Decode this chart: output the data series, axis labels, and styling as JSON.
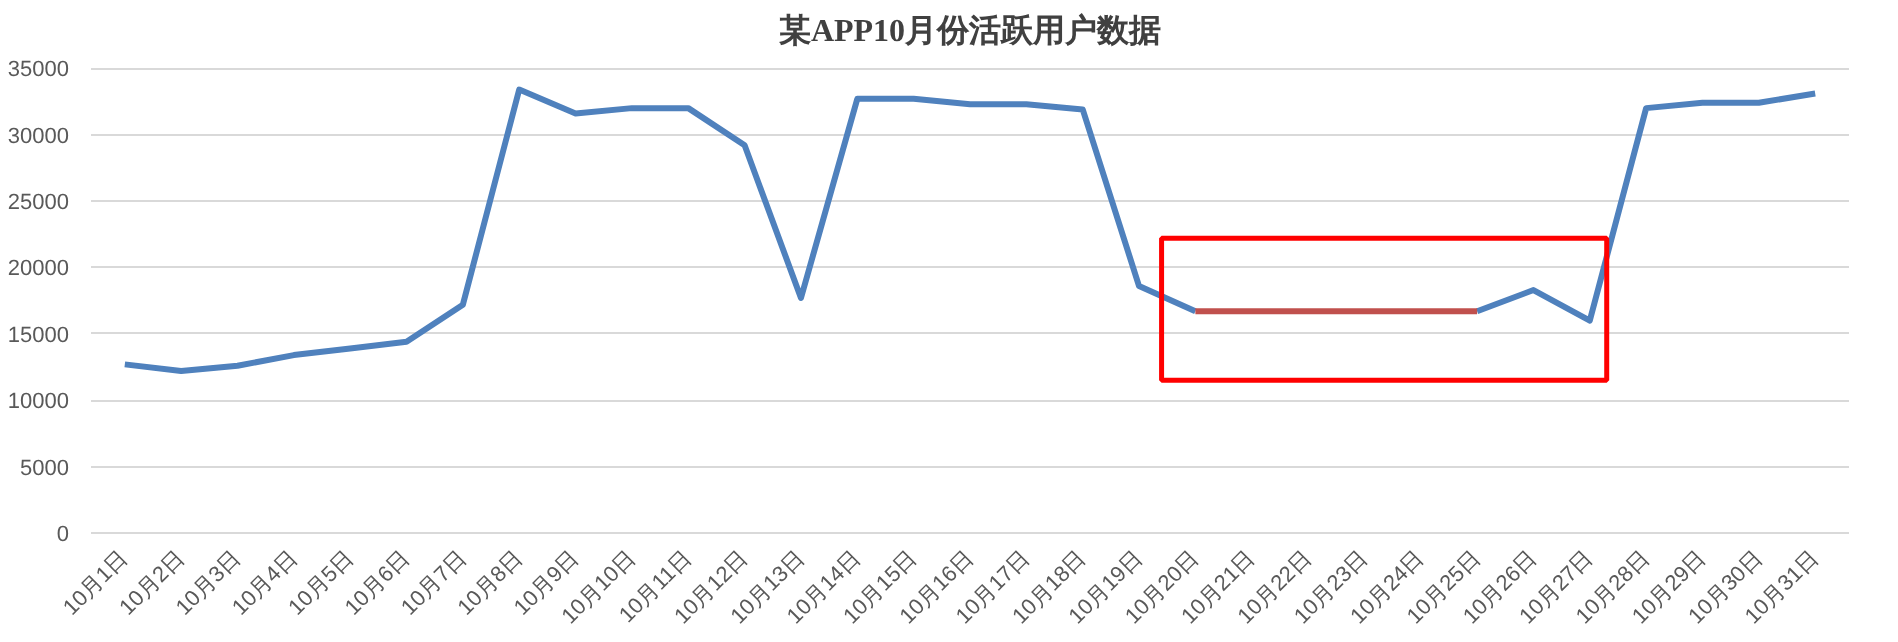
{
  "chart_data": {
    "type": "line",
    "title": "某APP10月份活跃用户数据",
    "categories": [
      "10月1日",
      "10月2日",
      "10月3日",
      "10月4日",
      "10月5日",
      "10月6日",
      "10月7日",
      "10月8日",
      "10月9日",
      "10月10日",
      "10月11日",
      "10月12日",
      "10月13日",
      "10月14日",
      "10月15日",
      "10月16日",
      "10月17日",
      "10月18日",
      "10月19日",
      "10月20日",
      "10月21日",
      "10月22日",
      "10月23日",
      "10月24日",
      "10月25日",
      "10月26日",
      "10月27日",
      "10月28日",
      "10月29日",
      "10月30日",
      "10月31日"
    ],
    "series": [
      {
        "color": "#4f81bd",
        "values": [
          12700,
          12200,
          12600,
          13400,
          13900,
          14400,
          17200,
          33400,
          31600,
          32000,
          32000,
          29200,
          17700,
          32700,
          32700,
          32300,
          32300,
          31900,
          18600,
          16700,
          null,
          null,
          null,
          null,
          16700,
          18300,
          16000,
          32000,
          32400,
          32400,
          33100
        ]
      },
      {
        "color": "#c0504d",
        "values": [
          null,
          null,
          null,
          null,
          null,
          null,
          null,
          null,
          null,
          null,
          null,
          null,
          null,
          null,
          null,
          null,
          null,
          null,
          null,
          16700,
          16700,
          16700,
          16700,
          16700,
          16700,
          null,
          null,
          null,
          null,
          null,
          null
        ]
      }
    ],
    "ylim": [
      0,
      35000
    ],
    "yticks": [
      0,
      5000,
      10000,
      15000,
      20000,
      25000,
      30000,
      35000
    ],
    "grid": "y",
    "marker": "none",
    "line_style": "solid"
  }
}
